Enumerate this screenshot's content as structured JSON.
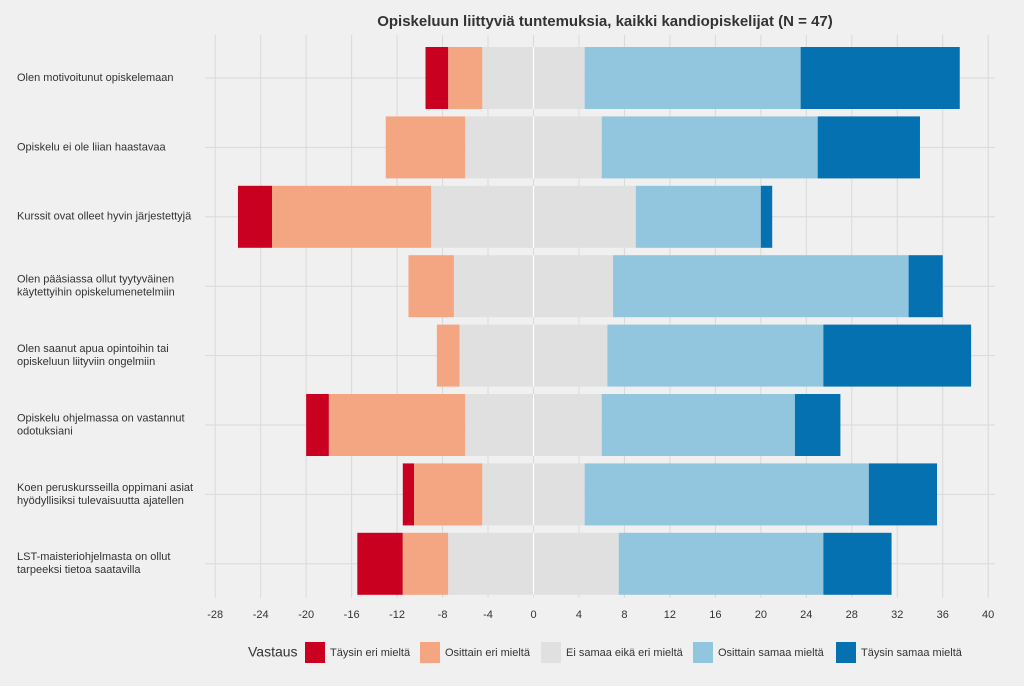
{
  "chart_data": {
    "type": "diverging_bar",
    "title": "Opiskeluun liittyviä tuntemuksia, kaikki kandiopiskelijat (N = 47)",
    "categories": [
      [
        "Olen motivoitunut opiskelemaan"
      ],
      [
        "Opiskelu ei ole liian haastavaa"
      ],
      [
        "Kurssit ovat olleet hyvin järjestettyjä"
      ],
      [
        "Olen pääsiassa ollut tyytyväinen",
        "käytettyihin opiskelumenetelmiin"
      ],
      [
        "Olen saanut apua opintoihin tai",
        "opiskeluun liityviin ongelmiin"
      ],
      [
        "Opiskelu ohjelmassa on vastannut",
        "odotuksiani"
      ],
      [
        "Koen peruskursseilla oppimani asiat",
        "hyödyllisiksi tulevaisuutta ajatellen"
      ],
      [
        "LST-maisteriohjelmasta on ollut",
        "tarpeeksi tietoa saatavilla"
      ]
    ],
    "legend_title": "Vastaus",
    "series": [
      {
        "name": "Täysin eri mieltä",
        "color": "#ca0020",
        "values": [
          2,
          0,
          3,
          0,
          0,
          2,
          1,
          4
        ]
      },
      {
        "name": "Osittain eri mieltä",
        "color": "#f4a582",
        "values": [
          3,
          7,
          14,
          4,
          2,
          12,
          6,
          4
        ]
      },
      {
        "name": "Ei samaa eikä eri mieltä",
        "color": "#e0e0e0",
        "values": [
          9,
          12,
          18,
          14,
          13,
          12,
          9,
          15
        ]
      },
      {
        "name": "Osittain samaa mieltä",
        "color": "#92c5de",
        "values": [
          19,
          19,
          11,
          26,
          19,
          17,
          25,
          18
        ]
      },
      {
        "name": "Täysin samaa mieltä",
        "color": "#0571b0",
        "values": [
          14,
          9,
          1,
          3,
          13,
          4,
          6,
          6
        ]
      }
    ],
    "xlim": [
      -28.9,
      40.6
    ],
    "xticks": [
      -28,
      -24,
      -20,
      -16,
      -12,
      -8,
      -4,
      0,
      4,
      8,
      12,
      16,
      20,
      24,
      28,
      32,
      36,
      40
    ],
    "grid": true
  }
}
